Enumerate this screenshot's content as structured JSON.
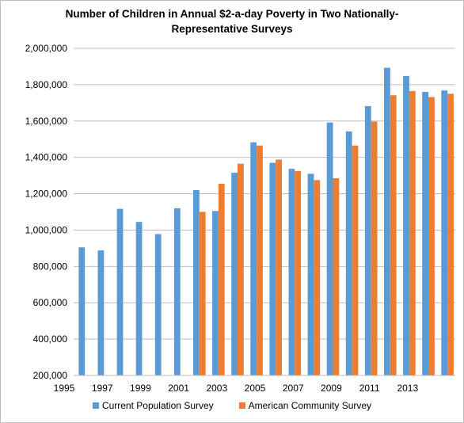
{
  "chart_data": {
    "type": "bar",
    "title": "Number of Children in Annual $2-a-day Poverty in Two Nationally-Representative Surveys",
    "title_lines": [
      "Number of Children in Annual $2-a-day Poverty in Two Nationally-",
      "Representative Surveys"
    ],
    "categories": [
      "1995",
      "1996",
      "1997",
      "1998",
      "1999",
      "2000",
      "2001",
      "2002",
      "2003",
      "2004",
      "2005",
      "2006",
      "2007",
      "2008",
      "2009",
      "2010",
      "2011",
      "2012",
      "2013",
      "2014"
    ],
    "x_tick_labels": [
      "1995",
      "1997",
      "1999",
      "2001",
      "2003",
      "2005",
      "2007",
      "2009",
      "2011",
      "2013"
    ],
    "y_tick_labels": [
      "200,000",
      "400,000",
      "600,000",
      "800,000",
      "1,000,000",
      "1,200,000",
      "1,400,000",
      "1,600,000",
      "1,800,000",
      "2,000,000"
    ],
    "ylim": [
      200000,
      2000000
    ],
    "grid": true,
    "legend_position": "bottom",
    "series": [
      {
        "name": "Current Population Survey",
        "color": "#5b9bd5",
        "values": [
          905000,
          888000,
          1117000,
          1045000,
          978000,
          1120000,
          1220000,
          1105000,
          1315000,
          1483000,
          1370000,
          1337000,
          1310000,
          1592000,
          1543000,
          1682000,
          1893000,
          1848000,
          1760000,
          1768000
        ]
      },
      {
        "name": "American Community Survey",
        "color": "#ed7d31",
        "values": [
          null,
          null,
          null,
          null,
          null,
          null,
          1100000,
          1255000,
          1365000,
          1465000,
          1388000,
          1325000,
          1275000,
          1285000,
          1465000,
          1597000,
          1742000,
          1765000,
          1732000,
          1750000
        ]
      }
    ]
  }
}
